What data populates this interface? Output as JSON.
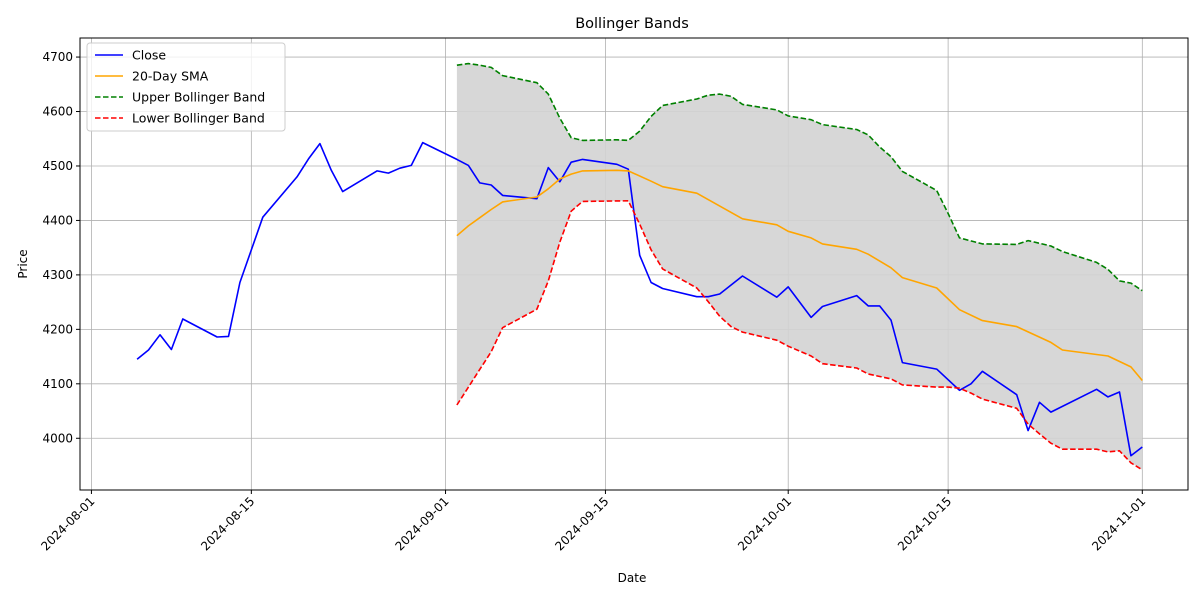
{
  "chart_data": {
    "type": "line",
    "title": "Bollinger Bands",
    "xlabel": "Date",
    "ylabel": "Price",
    "x_axis": {
      "kind": "date",
      "range": [
        "2024-07-31",
        "2024-11-05"
      ],
      "ticks": [
        "2024-08-01",
        "2024-08-15",
        "2024-09-01",
        "2024-09-15",
        "2024-10-01",
        "2024-10-15",
        "2024-11-01"
      ]
    },
    "y_axis": {
      "range": [
        3905,
        4735
      ],
      "ticks": [
        4000,
        4100,
        4200,
        4300,
        4400,
        4500,
        4600,
        4700
      ]
    },
    "grid": true,
    "legend_position": "top-left",
    "band_fill": "#d3d3d3",
    "series": [
      {
        "name": "Close",
        "color": "#0000ff",
        "dash": "solid",
        "points": [
          [
            "2024-08-05",
            4145
          ],
          [
            "2024-08-06",
            4162
          ],
          [
            "2024-08-07",
            4190
          ],
          [
            "2024-08-08",
            4163
          ],
          [
            "2024-08-09",
            4219
          ],
          [
            "2024-08-12",
            4186
          ],
          [
            "2024-08-13",
            4187
          ],
          [
            "2024-08-14",
            4286
          ],
          [
            "2024-08-16",
            4406
          ],
          [
            "2024-08-19",
            4480
          ],
          [
            "2024-08-20",
            4513
          ],
          [
            "2024-08-21",
            4541
          ],
          [
            "2024-08-22",
            4492
          ],
          [
            "2024-08-23",
            4453
          ],
          [
            "2024-08-26",
            4491
          ],
          [
            "2024-08-27",
            4487
          ],
          [
            "2024-08-28",
            4496
          ],
          [
            "2024-08-29",
            4501
          ],
          [
            "2024-08-30",
            4543
          ],
          [
            "2024-09-02",
            4512
          ],
          [
            "2024-09-03",
            4501
          ],
          [
            "2024-09-04",
            4469
          ],
          [
            "2024-09-05",
            4465
          ],
          [
            "2024-09-06",
            4446
          ],
          [
            "2024-09-09",
            4440
          ],
          [
            "2024-09-10",
            4497
          ],
          [
            "2024-09-11",
            4471
          ],
          [
            "2024-09-12",
            4507
          ],
          [
            "2024-09-13",
            4512
          ],
          [
            "2024-09-16",
            4503
          ],
          [
            "2024-09-17",
            4494
          ],
          [
            "2024-09-18",
            4336
          ],
          [
            "2024-09-19",
            4286
          ],
          [
            "2024-09-20",
            4275
          ],
          [
            "2024-09-23",
            4260
          ],
          [
            "2024-09-24",
            4260
          ],
          [
            "2024-09-25",
            4265
          ],
          [
            "2024-09-27",
            4298
          ],
          [
            "2024-09-30",
            4259
          ],
          [
            "2024-10-01",
            4278
          ],
          [
            "2024-10-03",
            4222
          ],
          [
            "2024-10-04",
            4242
          ],
          [
            "2024-10-07",
            4262
          ],
          [
            "2024-10-08",
            4243
          ],
          [
            "2024-10-09",
            4243
          ],
          [
            "2024-10-10",
            4217
          ],
          [
            "2024-10-11",
            4139
          ],
          [
            "2024-10-14",
            4127
          ],
          [
            "2024-10-16",
            4088
          ],
          [
            "2024-10-17",
            4100
          ],
          [
            "2024-10-18",
            4123
          ],
          [
            "2024-10-21",
            4080
          ],
          [
            "2024-10-22",
            4014
          ],
          [
            "2024-10-23",
            4066
          ],
          [
            "2024-10-24",
            4048
          ],
          [
            "2024-10-28",
            4090
          ],
          [
            "2024-10-29",
            4076
          ],
          [
            "2024-10-30",
            4085
          ],
          [
            "2024-10-31",
            3968
          ],
          [
            "2024-11-01",
            3984
          ]
        ]
      },
      {
        "name": "20-Day SMA",
        "color": "#ffa500",
        "dash": "solid",
        "points": [
          [
            "2024-09-02",
            4372
          ],
          [
            "2024-09-03",
            4390
          ],
          [
            "2024-09-04",
            4405
          ],
          [
            "2024-09-05",
            4420
          ],
          [
            "2024-09-06",
            4434
          ],
          [
            "2024-09-09",
            4443
          ],
          [
            "2024-09-10",
            4458
          ],
          [
            "2024-09-11",
            4476
          ],
          [
            "2024-09-12",
            4485
          ],
          [
            "2024-09-13",
            4491
          ],
          [
            "2024-09-16",
            4492
          ],
          [
            "2024-09-17",
            4491
          ],
          [
            "2024-09-19",
            4472
          ],
          [
            "2024-09-20",
            4462
          ],
          [
            "2024-09-23",
            4450
          ],
          [
            "2024-09-27",
            4403
          ],
          [
            "2024-09-30",
            4392
          ],
          [
            "2024-10-01",
            4380
          ],
          [
            "2024-10-03",
            4368
          ],
          [
            "2024-10-04",
            4357
          ],
          [
            "2024-10-07",
            4347
          ],
          [
            "2024-10-08",
            4338
          ],
          [
            "2024-10-10",
            4313
          ],
          [
            "2024-10-11",
            4295
          ],
          [
            "2024-10-14",
            4276
          ],
          [
            "2024-10-16",
            4236
          ],
          [
            "2024-10-18",
            4216
          ],
          [
            "2024-10-21",
            4205
          ],
          [
            "2024-10-24",
            4176
          ],
          [
            "2024-10-25",
            4162
          ],
          [
            "2024-10-29",
            4151
          ],
          [
            "2024-10-31",
            4131
          ],
          [
            "2024-11-01",
            4106
          ]
        ]
      },
      {
        "name": "Upper Bollinger Band",
        "color": "#008000",
        "dash": "dashed",
        "points": [
          [
            "2024-09-02",
            4685
          ],
          [
            "2024-09-03",
            4688
          ],
          [
            "2024-09-04",
            4685
          ],
          [
            "2024-09-05",
            4681
          ],
          [
            "2024-09-06",
            4666
          ],
          [
            "2024-09-09",
            4653
          ],
          [
            "2024-09-10",
            4632
          ],
          [
            "2024-09-11",
            4588
          ],
          [
            "2024-09-12",
            4552
          ],
          [
            "2024-09-13",
            4547
          ],
          [
            "2024-09-16",
            4548
          ],
          [
            "2024-09-17",
            4547
          ],
          [
            "2024-09-18",
            4564
          ],
          [
            "2024-09-19",
            4591
          ],
          [
            "2024-09-20",
            4611
          ],
          [
            "2024-09-23",
            4623
          ],
          [
            "2024-09-24",
            4630
          ],
          [
            "2024-09-25",
            4632
          ],
          [
            "2024-09-26",
            4628
          ],
          [
            "2024-09-27",
            4613
          ],
          [
            "2024-09-30",
            4603
          ],
          [
            "2024-10-01",
            4592
          ],
          [
            "2024-10-03",
            4585
          ],
          [
            "2024-10-04",
            4576
          ],
          [
            "2024-10-07",
            4567
          ],
          [
            "2024-10-08",
            4557
          ],
          [
            "2024-10-09",
            4535
          ],
          [
            "2024-10-10",
            4517
          ],
          [
            "2024-10-11",
            4490
          ],
          [
            "2024-10-14",
            4455
          ],
          [
            "2024-10-15",
            4413
          ],
          [
            "2024-10-16",
            4368
          ],
          [
            "2024-10-18",
            4357
          ],
          [
            "2024-10-21",
            4356
          ],
          [
            "2024-10-22",
            4363
          ],
          [
            "2024-10-24",
            4353
          ],
          [
            "2024-10-25",
            4343
          ],
          [
            "2024-10-28",
            4323
          ],
          [
            "2024-10-29",
            4310
          ],
          [
            "2024-10-30",
            4289
          ],
          [
            "2024-10-31",
            4285
          ],
          [
            "2024-11-01",
            4271
          ]
        ]
      },
      {
        "name": "Lower Bollinger Band",
        "color": "#ff0000",
        "dash": "dashed",
        "points": [
          [
            "2024-09-02",
            4061
          ],
          [
            "2024-09-05",
            4159
          ],
          [
            "2024-09-06",
            4203
          ],
          [
            "2024-09-09",
            4237
          ],
          [
            "2024-09-10",
            4289
          ],
          [
            "2024-09-11",
            4360
          ],
          [
            "2024-09-12",
            4417
          ],
          [
            "2024-09-13",
            4435
          ],
          [
            "2024-09-17",
            4436
          ],
          [
            "2024-09-18",
            4393
          ],
          [
            "2024-09-19",
            4346
          ],
          [
            "2024-09-20",
            4311
          ],
          [
            "2024-09-23",
            4276
          ],
          [
            "2024-09-24",
            4251
          ],
          [
            "2024-09-25",
            4224
          ],
          [
            "2024-09-26",
            4205
          ],
          [
            "2024-09-27",
            4195
          ],
          [
            "2024-09-30",
            4180
          ],
          [
            "2024-10-01",
            4169
          ],
          [
            "2024-10-03",
            4151
          ],
          [
            "2024-10-04",
            4137
          ],
          [
            "2024-10-07",
            4129
          ],
          [
            "2024-10-08",
            4118
          ],
          [
            "2024-10-10",
            4109
          ],
          [
            "2024-10-11",
            4098
          ],
          [
            "2024-10-14",
            4094
          ],
          [
            "2024-10-15",
            4094
          ],
          [
            "2024-10-16",
            4092
          ],
          [
            "2024-10-17",
            4083
          ],
          [
            "2024-10-18",
            4072
          ],
          [
            "2024-10-21",
            4055
          ],
          [
            "2024-10-22",
            4026
          ],
          [
            "2024-10-23",
            4008
          ],
          [
            "2024-10-24",
            3991
          ],
          [
            "2024-10-25",
            3980
          ],
          [
            "2024-10-28",
            3980
          ],
          [
            "2024-10-29",
            3975
          ],
          [
            "2024-10-30",
            3977
          ],
          [
            "2024-10-31",
            3955
          ],
          [
            "2024-11-01",
            3942
          ]
        ]
      }
    ]
  }
}
